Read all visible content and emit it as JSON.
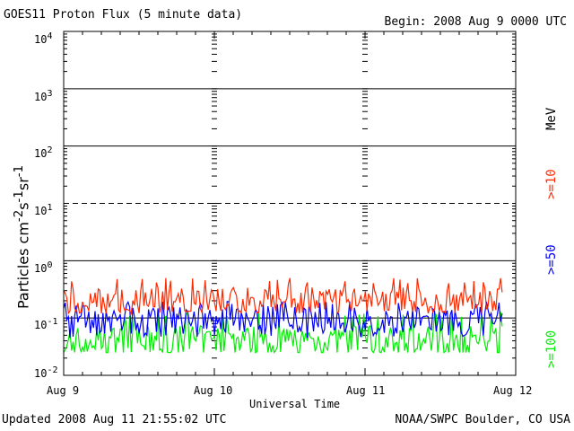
{
  "header": {
    "title": "GOES11 Proton Flux (5 minute data)",
    "begin": "Begin: 2008 Aug 9 0000 UTC"
  },
  "footer": {
    "updated": "Updated 2008 Aug 11 21:55:02 UTC",
    "credit": "NOAA/SWPC Boulder, CO USA"
  },
  "chart_data": {
    "type": "line",
    "title": "GOES11 Proton Flux (5 minute data)",
    "xlabel": "Universal Time",
    "ylabel": "Particles cm^-2 s^-1 sr^-1",
    "yscale": "log",
    "ylim": [
      0.01,
      10000
    ],
    "xlim_days": [
      0,
      3
    ],
    "x_ticks": [
      "Aug 9",
      "Aug 10",
      "Aug 11",
      "Aug 12"
    ],
    "y_ticks": [
      {
        "base": "10",
        "exp": "-2"
      },
      {
        "base": "10",
        "exp": "-1"
      },
      {
        "base": "10",
        "exp": "0"
      },
      {
        "base": "10",
        "exp": "1"
      },
      {
        "base": "10",
        "exp": "2"
      },
      {
        "base": "10",
        "exp": "3"
      },
      {
        "base": "10",
        "exp": "4"
      }
    ],
    "grid": "horizontal lines at each decade; dashed at 10^1 threshold",
    "data_end_day": 2.91,
    "series": [
      {
        "name": ">=10",
        "color": "#ff2a00",
        "typical": 0.2,
        "low": 0.12,
        "high": 0.5
      },
      {
        "name": ">=50",
        "color": "#0000ff",
        "typical": 0.09,
        "low": 0.045,
        "high": 0.2
      },
      {
        "name": ">=100",
        "color": "#00ee00",
        "typical": 0.04,
        "low": 0.025,
        "high": 0.13
      }
    ],
    "right_labels": {
      "unit": "MeV",
      "s10": ">=10",
      "s50": ">=50",
      "s100": ">=100"
    }
  }
}
